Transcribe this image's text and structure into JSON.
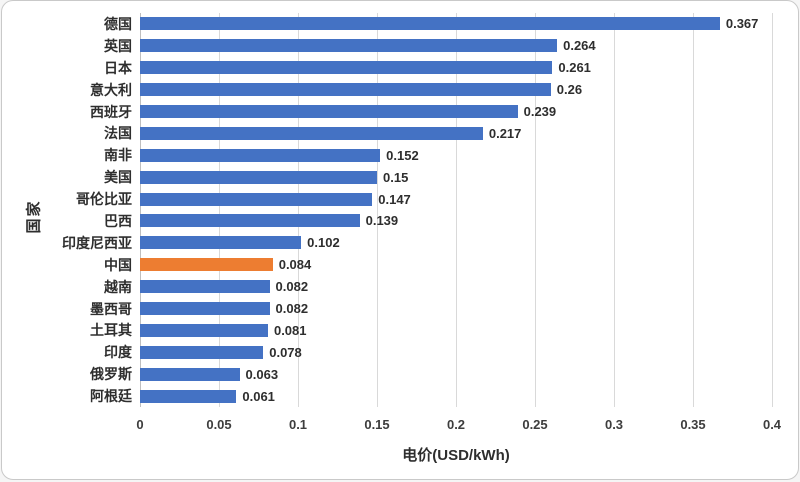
{
  "chart_data": {
    "type": "bar",
    "orientation": "horizontal",
    "title": "",
    "xlabel": "电价(USD/kWh)",
    "ylabel": "国家",
    "xlim": [
      0,
      0.4
    ],
    "xticks": [
      "0",
      "0.05",
      "0.1",
      "0.15",
      "0.2",
      "0.25",
      "0.3",
      "0.35",
      "0.4"
    ],
    "grid": true,
    "bar_color": "#4472C4",
    "highlight_color": "#ED7D31",
    "highlight_index": 11,
    "categories": [
      "德国",
      "英国",
      "日本",
      "意大利",
      "西班牙",
      "法国",
      "南非",
      "美国",
      "哥伦比亚",
      "巴西",
      "印度尼西亚",
      "中国",
      "越南",
      "墨西哥",
      "土耳其",
      "印度",
      "俄罗斯",
      "阿根廷"
    ],
    "values": [
      0.367,
      0.264,
      0.261,
      0.26,
      0.239,
      0.217,
      0.152,
      0.15,
      0.147,
      0.139,
      0.102,
      0.084,
      0.082,
      0.082,
      0.081,
      0.078,
      0.063,
      0.061
    ],
    "value_labels": [
      "0.367",
      "0.264",
      "0.261",
      "0.26",
      "0.239",
      "0.217",
      "0.152",
      "0.15",
      "0.147",
      "0.139",
      "0.102",
      "0.084",
      "0.082",
      "0.082",
      "0.081",
      "0.078",
      "0.063",
      "0.061"
    ]
  }
}
